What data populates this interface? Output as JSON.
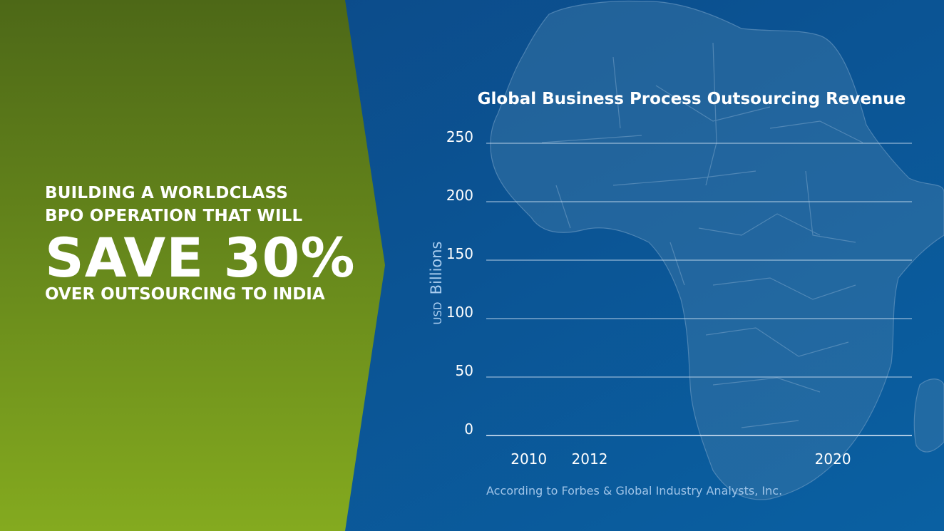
{
  "headline": {
    "line1": "BUILDING A WORLDCLASS",
    "line2": "BPO OPERATION THAT WILL",
    "big": "SAVE 30%",
    "line3": "OVER OUTSOURCING TO INDIA"
  },
  "colors": {
    "left_panel_top": "#4f6a18",
    "left_panel_bottom": "#82a81e",
    "right_panel_top": "#0b4e8c",
    "right_panel_bottom": "#0a5c9e",
    "text": "#ffffff",
    "source_text": "#9fc4e8"
  },
  "chart_data": {
    "type": "bar",
    "title": "Global Business Process Outsourcing Revenue",
    "ylabel": "USD Billions",
    "ylabel_parts": [
      "USD",
      "Billions"
    ],
    "xlabel": "",
    "ylim": [
      0,
      250
    ],
    "yticks": [
      0,
      50,
      100,
      150,
      200,
      250
    ],
    "grid": true,
    "categories": [
      "2010",
      "2012",
      "2020"
    ],
    "values": [
      null,
      null,
      null
    ],
    "source": "According to Forbes & Global Industry Analysts, Inc."
  }
}
